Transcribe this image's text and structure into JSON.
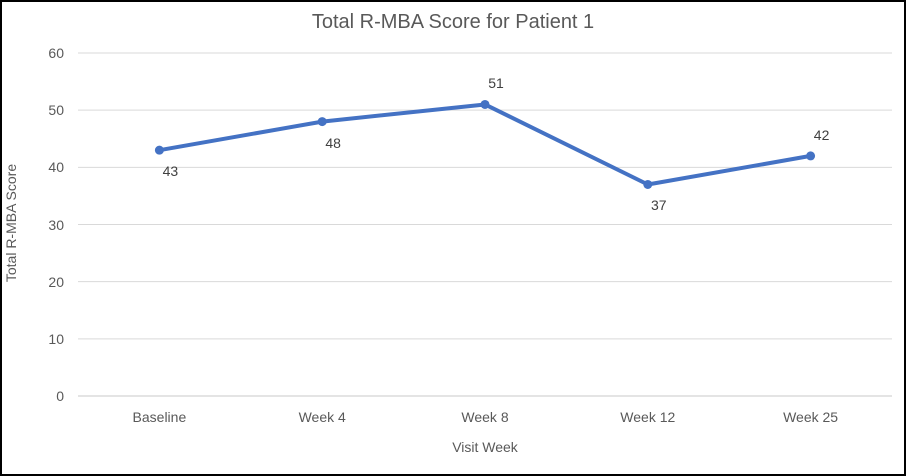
{
  "chart_data": {
    "type": "line",
    "title": "Total R-MBA Score for Patient 1",
    "categories": [
      "Baseline",
      "Week 4",
      "Week 8",
      "Week 12",
      "Week 25"
    ],
    "series": [
      {
        "name": "Total R-MBA Score",
        "values": [
          43,
          48,
          51,
          37,
          42
        ]
      }
    ],
    "data_labels": [
      "43",
      "48",
      "51",
      "37",
      "42"
    ],
    "label_positions": [
      "below",
      "below",
      "above",
      "below",
      "above"
    ],
    "xlabel": "Visit Week",
    "ylabel": "Total R-MBA Score",
    "ylim": [
      0,
      60
    ],
    "yticks": [
      0,
      10,
      20,
      30,
      40,
      50,
      60
    ],
    "grid": "horizontal",
    "legend": "none"
  },
  "colors": {
    "line": "#4472C4",
    "marker": "#4472C4",
    "gridline": "#D9D9D9",
    "axis_line": "#C9C9C9",
    "tick_text": "#595959",
    "title_text": "#595959",
    "data_label_text": "#404040",
    "border": "#000000",
    "background": "#FFFFFF"
  }
}
